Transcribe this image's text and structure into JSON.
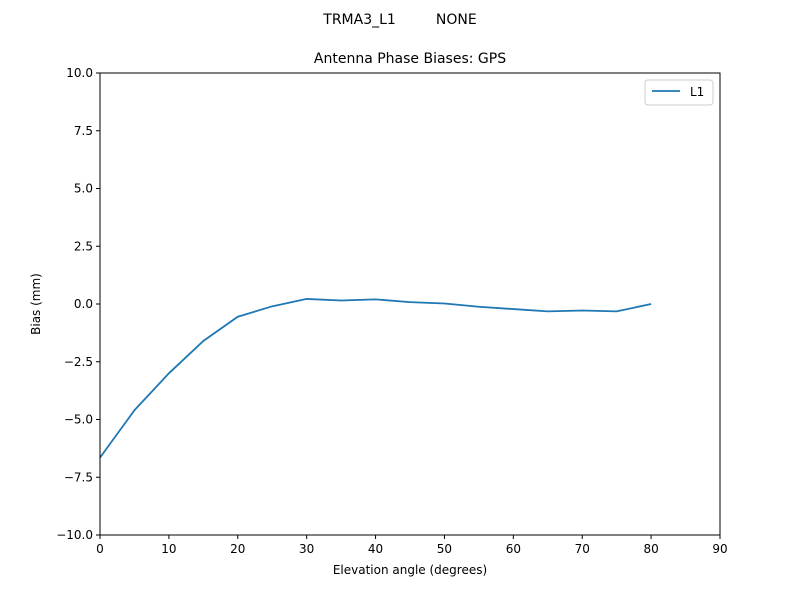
{
  "suptitle": "TRMA3_L1         NONE",
  "chart_data": {
    "type": "line",
    "title": "Antenna Phase Biases: GPS",
    "xlabel": "Elevation angle (degrees)",
    "ylabel": "Bias (mm)",
    "xlim": [
      0,
      90
    ],
    "ylim": [
      -10,
      10
    ],
    "xticks": [
      "0",
      "10",
      "20",
      "30",
      "40",
      "50",
      "60",
      "70",
      "80",
      "90"
    ],
    "yticks": [
      "10.0",
      "7.5",
      "5.0",
      "2.5",
      "0.0",
      "−2.5",
      "−5.0",
      "−7.5",
      "−10.0"
    ],
    "legend_position": "upper right",
    "grid": false,
    "series": [
      {
        "name": "L1",
        "color": "#1f77b4",
        "x": [
          0,
          5,
          10,
          15,
          20,
          25,
          30,
          35,
          40,
          45,
          50,
          55,
          60,
          65,
          70,
          75,
          80
        ],
        "values": [
          -6.65,
          -4.6,
          -3.0,
          -1.6,
          -0.55,
          -0.1,
          0.22,
          0.15,
          0.2,
          0.08,
          0.02,
          -0.12,
          -0.22,
          -0.32,
          -0.28,
          -0.32,
          0.0
        ]
      }
    ]
  }
}
